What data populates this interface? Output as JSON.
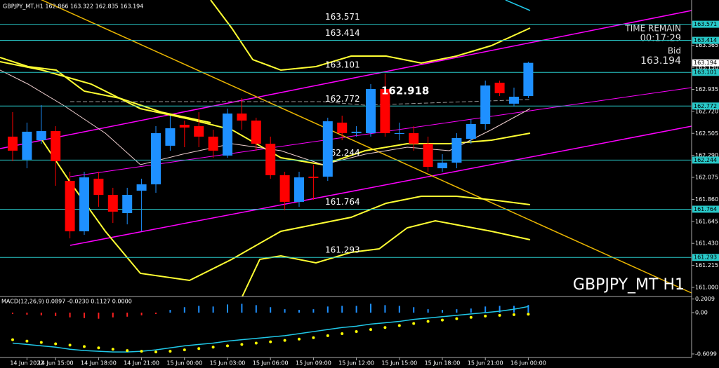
{
  "header": "GBPJPY_MT,H1  162.866 163.322 162.835 163.194",
  "time_remain_label": "TIME REMAIN",
  "time_remain": "00:17:29",
  "bid_label": "Bid",
  "bid": 163.194,
  "symbol_label": "GBPJPY_MT H1",
  "chart_data": [
    {
      "type": "candlestick",
      "categories": [
        null,
        "14 Jun 2022",
        null,
        "14 Jun 15:00",
        null,
        null,
        "14 Jun 18:00",
        null,
        null,
        "14 Jun 21:00",
        null,
        null,
        "15 Jun 00:00",
        null,
        null,
        "15 Jun 03:00",
        null,
        null,
        "15 Jun 06:00",
        null,
        null,
        "15 Jun 09:00",
        null,
        null,
        "15 Jun 12:00",
        null,
        null,
        "15 Jun 15:00",
        null,
        null,
        "15 Jun 18:00",
        null,
        null,
        "15 Jun 21:00",
        null,
        null,
        "16 Jun 00:00"
      ],
      "open": [
        162.473,
        162.247,
        162.438,
        162.527,
        162.041,
        161.548,
        162.062,
        161.904,
        161.726,
        161.945,
        162.007,
        162.384,
        162.589,
        162.575,
        162.473,
        162.288,
        162.699,
        162.63,
        162.404,
        162.096,
        161.836,
        162.082,
        162.082,
        162.61,
        162.507,
        162.507,
        162.938,
        162.5,
        162.507,
        162.404,
        162.164,
        162.219,
        162.452,
        162.596,
        163.0,
        162.795,
        162.87
      ],
      "high": [
        162.712,
        162.61,
        162.781,
        162.575,
        162.13,
        162.13,
        162.13,
        161.973,
        161.973,
        162.062,
        162.575,
        162.678,
        162.63,
        162.712,
        162.541,
        162.747,
        162.849,
        162.658,
        162.473,
        162.13,
        162.13,
        162.199,
        162.658,
        162.678,
        162.575,
        162.986,
        163.089,
        162.61,
        162.575,
        162.473,
        162.301,
        162.507,
        162.644,
        163.021,
        163.021,
        162.952,
        163.205
      ],
      "low": [
        162.233,
        162.164,
        162.404,
        161.993,
        161.479,
        161.514,
        161.788,
        161.63,
        161.616,
        161.548,
        161.925,
        162.336,
        162.37,
        162.37,
        162.267,
        162.267,
        162.541,
        162.336,
        162.062,
        161.753,
        161.788,
        161.856,
        162.041,
        162.438,
        162.473,
        162.473,
        162.473,
        162.438,
        162.336,
        162.13,
        162.13,
        162.164,
        162.404,
        162.541,
        162.87,
        162.767,
        162.849
      ],
      "close": [
        162.336,
        162.521,
        162.527,
        162.233,
        161.548,
        162.075,
        161.904,
        161.74,
        161.904,
        162.007,
        162.507,
        162.555,
        162.562,
        162.473,
        162.336,
        162.699,
        162.63,
        162.404,
        162.096,
        161.836,
        162.075,
        162.068,
        162.623,
        162.507,
        162.521,
        162.938,
        162.507,
        162.507,
        162.404,
        162.178,
        162.219,
        162.459,
        162.596,
        162.973,
        162.897,
        162.863,
        163.194
      ],
      "up_color": "#1e90ff",
      "down_color": "#ff0000",
      "ylim": [
        160.911,
        163.808
      ],
      "yticks": [
        163.365,
        {
          "value": 163.15,
          "label": "163.150"
        },
        162.935,
        {
          "value": 162.72,
          "label": "162.720"
        },
        162.505,
        {
          "value": 162.29,
          "label": "162.290"
        },
        162.075,
        {
          "value": 161.86,
          "label": "161.860"
        },
        161.645,
        {
          "value": 161.43,
          "label": "161.430"
        },
        161.215,
        {
          "value": 161.0,
          "label": "161.000"
        }
      ],
      "levels": [
        163.571,
        163.414,
        163.101,
        162.772,
        162.244,
        161.764,
        161.293
      ],
      "level_color": "#28c8c8",
      "price_label": 162.918
    },
    {
      "type": "macd",
      "title": "MACD(12,26,9) 0.0897 -0.0230 0.1127 0.0000",
      "histogram": [
        -0.02,
        -0.03,
        -0.04,
        -0.05,
        -0.07,
        -0.08,
        -0.09,
        -0.07,
        -0.06,
        -0.04,
        -0.02,
        0.04,
        0.08,
        0.1,
        0.09,
        0.12,
        0.13,
        0.11,
        0.08,
        0.05,
        0.04,
        0.05,
        0.09,
        0.1,
        0.1,
        0.13,
        0.11,
        0.1,
        0.08,
        0.05,
        0.04,
        0.05,
        0.06,
        0.09,
        0.1,
        0.1,
        0.1127
      ],
      "line": [
        -0.45,
        -0.47,
        -0.49,
        -0.51,
        -0.54,
        -0.56,
        -0.57,
        -0.58,
        -0.58,
        -0.57,
        -0.55,
        -0.52,
        -0.49,
        -0.47,
        -0.45,
        -0.42,
        -0.4,
        -0.38,
        -0.36,
        -0.34,
        -0.31,
        -0.28,
        -0.25,
        -0.22,
        -0.2,
        -0.17,
        -0.15,
        -0.13,
        -0.1,
        -0.08,
        -0.06,
        -0.04,
        -0.02,
        0.0,
        0.02,
        0.05,
        0.0897
      ],
      "signal": [
        -0.4,
        -0.42,
        -0.44,
        -0.46,
        -0.48,
        -0.5,
        -0.52,
        -0.54,
        -0.56,
        -0.57,
        -0.58,
        -0.57,
        -0.55,
        -0.53,
        -0.51,
        -0.49,
        -0.47,
        -0.45,
        -0.43,
        -0.41,
        -0.39,
        -0.37,
        -0.34,
        -0.31,
        -0.28,
        -0.25,
        -0.22,
        -0.19,
        -0.16,
        -0.13,
        -0.11,
        -0.09,
        -0.07,
        -0.05,
        -0.04,
        -0.03,
        -0.023
      ],
      "positive_color": "#1e90ff",
      "negative_color": "#ff2020",
      "line_color": "#20c8e8",
      "signal_color": "#ffff00",
      "ylim": [
        -0.662,
        0.217
      ],
      "yticks": [
        0.2009,
        {
          "value": 0,
          "label": "0.00"
        },
        -0.6099
      ]
    }
  ]
}
